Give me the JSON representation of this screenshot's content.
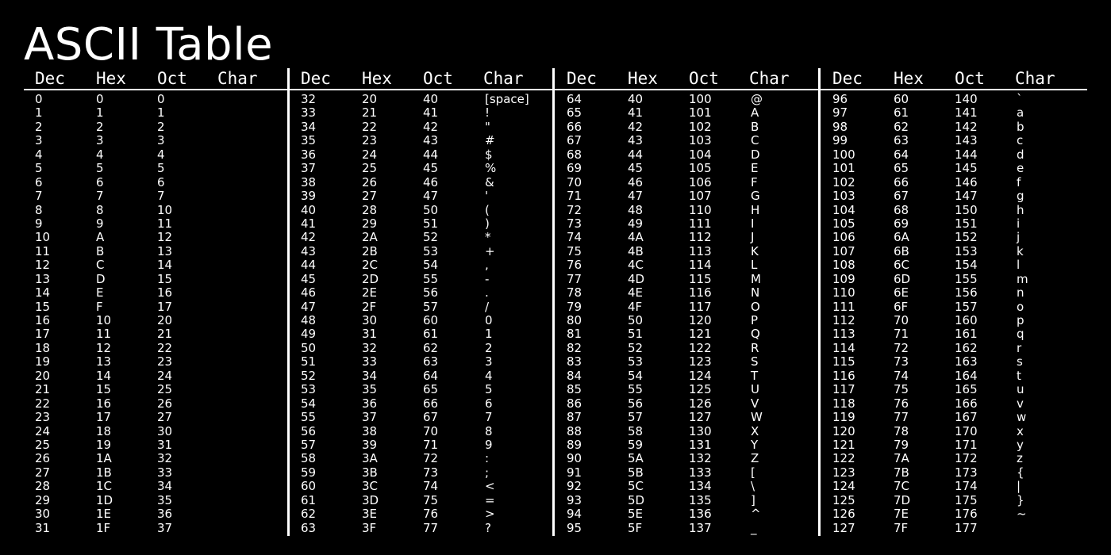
{
  "title": "ASCII Table",
  "headers": [
    "Dec",
    "Hex",
    "Oct",
    "Char"
  ],
  "blocks": [
    [
      [
        "0",
        "0",
        "0",
        ""
      ],
      [
        "1",
        "1",
        "1",
        ""
      ],
      [
        "2",
        "2",
        "2",
        ""
      ],
      [
        "3",
        "3",
        "3",
        ""
      ],
      [
        "4",
        "4",
        "4",
        ""
      ],
      [
        "5",
        "5",
        "5",
        ""
      ],
      [
        "6",
        "6",
        "6",
        ""
      ],
      [
        "7",
        "7",
        "7",
        ""
      ],
      [
        "8",
        "8",
        "10",
        ""
      ],
      [
        "9",
        "9",
        "11",
        ""
      ],
      [
        "10",
        "A",
        "12",
        ""
      ],
      [
        "11",
        "B",
        "13",
        ""
      ],
      [
        "12",
        "C",
        "14",
        ""
      ],
      [
        "13",
        "D",
        "15",
        ""
      ],
      [
        "14",
        "E",
        "16",
        ""
      ],
      [
        "15",
        "F",
        "17",
        ""
      ],
      [
        "16",
        "10",
        "20",
        ""
      ],
      [
        "17",
        "11",
        "21",
        ""
      ],
      [
        "18",
        "12",
        "22",
        ""
      ],
      [
        "19",
        "13",
        "23",
        ""
      ],
      [
        "20",
        "14",
        "24",
        ""
      ],
      [
        "21",
        "15",
        "25",
        ""
      ],
      [
        "22",
        "16",
        "26",
        ""
      ],
      [
        "23",
        "17",
        "27",
        ""
      ],
      [
        "24",
        "18",
        "30",
        ""
      ],
      [
        "25",
        "19",
        "31",
        ""
      ],
      [
        "26",
        "1A",
        "32",
        ""
      ],
      [
        "27",
        "1B",
        "33",
        ""
      ],
      [
        "28",
        "1C",
        "34",
        ""
      ],
      [
        "29",
        "1D",
        "35",
        ""
      ],
      [
        "30",
        "1E",
        "36",
        ""
      ],
      [
        "31",
        "1F",
        "37",
        ""
      ]
    ],
    [
      [
        "32",
        "20",
        "40",
        "[space]"
      ],
      [
        "33",
        "21",
        "41",
        "!"
      ],
      [
        "34",
        "22",
        "42",
        "\""
      ],
      [
        "35",
        "23",
        "43",
        "#"
      ],
      [
        "36",
        "24",
        "44",
        "$"
      ],
      [
        "37",
        "25",
        "45",
        "%"
      ],
      [
        "38",
        "26",
        "46",
        "&"
      ],
      [
        "39",
        "27",
        "47",
        "'"
      ],
      [
        "40",
        "28",
        "50",
        "("
      ],
      [
        "41",
        "29",
        "51",
        ")"
      ],
      [
        "42",
        "2A",
        "52",
        "*"
      ],
      [
        "43",
        "2B",
        "53",
        "+"
      ],
      [
        "44",
        "2C",
        "54",
        ","
      ],
      [
        "45",
        "2D",
        "55",
        "-"
      ],
      [
        "46",
        "2E",
        "56",
        "."
      ],
      [
        "47",
        "2F",
        "57",
        "/"
      ],
      [
        "48",
        "30",
        "60",
        "0"
      ],
      [
        "49",
        "31",
        "61",
        "1"
      ],
      [
        "50",
        "32",
        "62",
        "2"
      ],
      [
        "51",
        "33",
        "63",
        "3"
      ],
      [
        "52",
        "34",
        "64",
        "4"
      ],
      [
        "53",
        "35",
        "65",
        "5"
      ],
      [
        "54",
        "36",
        "66",
        "6"
      ],
      [
        "55",
        "37",
        "67",
        "7"
      ],
      [
        "56",
        "38",
        "70",
        "8"
      ],
      [
        "57",
        "39",
        "71",
        "9"
      ],
      [
        "58",
        "3A",
        "72",
        ":"
      ],
      [
        "59",
        "3B",
        "73",
        ";"
      ],
      [
        "60",
        "3C",
        "74",
        "<"
      ],
      [
        "61",
        "3D",
        "75",
        "="
      ],
      [
        "62",
        "3E",
        "76",
        ">"
      ],
      [
        "63",
        "3F",
        "77",
        "?"
      ]
    ],
    [
      [
        "64",
        "40",
        "100",
        "@"
      ],
      [
        "65",
        "41",
        "101",
        "A"
      ],
      [
        "66",
        "42",
        "102",
        "B"
      ],
      [
        "67",
        "43",
        "103",
        "C"
      ],
      [
        "68",
        "44",
        "104",
        "D"
      ],
      [
        "69",
        "45",
        "105",
        "E"
      ],
      [
        "70",
        "46",
        "106",
        "F"
      ],
      [
        "71",
        "47",
        "107",
        "G"
      ],
      [
        "72",
        "48",
        "110",
        "H"
      ],
      [
        "73",
        "49",
        "111",
        "I"
      ],
      [
        "74",
        "4A",
        "112",
        "J"
      ],
      [
        "75",
        "4B",
        "113",
        "K"
      ],
      [
        "76",
        "4C",
        "114",
        "L"
      ],
      [
        "77",
        "4D",
        "115",
        "M"
      ],
      [
        "78",
        "4E",
        "116",
        "N"
      ],
      [
        "79",
        "4F",
        "117",
        "O"
      ],
      [
        "80",
        "50",
        "120",
        "P"
      ],
      [
        "81",
        "51",
        "121",
        "Q"
      ],
      [
        "82",
        "52",
        "122",
        "R"
      ],
      [
        "83",
        "53",
        "123",
        "S"
      ],
      [
        "84",
        "54",
        "124",
        "T"
      ],
      [
        "85",
        "55",
        "125",
        "U"
      ],
      [
        "86",
        "56",
        "126",
        "V"
      ],
      [
        "87",
        "57",
        "127",
        "W"
      ],
      [
        "88",
        "58",
        "130",
        "X"
      ],
      [
        "89",
        "59",
        "131",
        "Y"
      ],
      [
        "90",
        "5A",
        "132",
        "Z"
      ],
      [
        "91",
        "5B",
        "133",
        "["
      ],
      [
        "92",
        "5C",
        "134",
        "\\"
      ],
      [
        "93",
        "5D",
        "135",
        "]"
      ],
      [
        "94",
        "5E",
        "136",
        "^"
      ],
      [
        "95",
        "5F",
        "137",
        "_"
      ]
    ],
    [
      [
        "96",
        "60",
        "140",
        "`"
      ],
      [
        "97",
        "61",
        "141",
        "a"
      ],
      [
        "98",
        "62",
        "142",
        "b"
      ],
      [
        "99",
        "63",
        "143",
        "c"
      ],
      [
        "100",
        "64",
        "144",
        "d"
      ],
      [
        "101",
        "65",
        "145",
        "e"
      ],
      [
        "102",
        "66",
        "146",
        "f"
      ],
      [
        "103",
        "67",
        "147",
        "g"
      ],
      [
        "104",
        "68",
        "150",
        "h"
      ],
      [
        "105",
        "69",
        "151",
        "i"
      ],
      [
        "106",
        "6A",
        "152",
        "j"
      ],
      [
        "107",
        "6B",
        "153",
        "k"
      ],
      [
        "108",
        "6C",
        "154",
        "l"
      ],
      [
        "109",
        "6D",
        "155",
        "m"
      ],
      [
        "110",
        "6E",
        "156",
        "n"
      ],
      [
        "111",
        "6F",
        "157",
        "o"
      ],
      [
        "112",
        "70",
        "160",
        "p"
      ],
      [
        "113",
        "71",
        "161",
        "q"
      ],
      [
        "114",
        "72",
        "162",
        "r"
      ],
      [
        "115",
        "73",
        "163",
        "s"
      ],
      [
        "116",
        "74",
        "164",
        "t"
      ],
      [
        "117",
        "75",
        "165",
        "u"
      ],
      [
        "118",
        "76",
        "166",
        "v"
      ],
      [
        "119",
        "77",
        "167",
        "w"
      ],
      [
        "120",
        "78",
        "170",
        "x"
      ],
      [
        "121",
        "79",
        "171",
        "y"
      ],
      [
        "122",
        "7A",
        "172",
        "z"
      ],
      [
        "123",
        "7B",
        "173",
        "{"
      ],
      [
        "124",
        "7C",
        "174",
        "|"
      ],
      [
        "125",
        "7D",
        "175",
        "}"
      ],
      [
        "126",
        "7E",
        "176",
        "~"
      ],
      [
        "127",
        "7F",
        "177",
        ""
      ]
    ]
  ]
}
